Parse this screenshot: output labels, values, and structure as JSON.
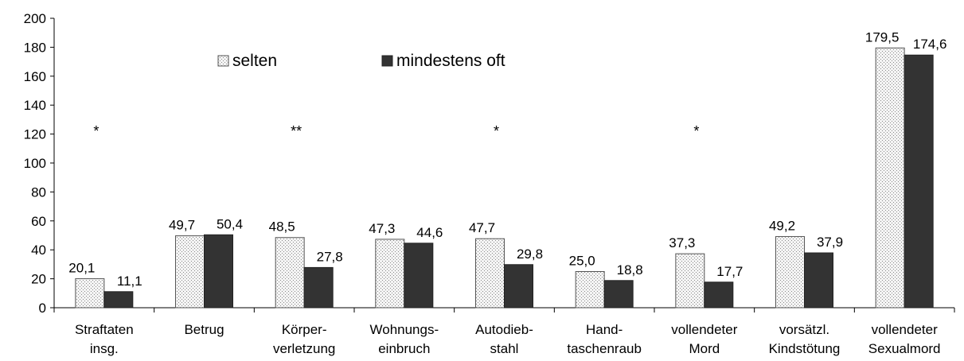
{
  "chart_data": {
    "type": "bar",
    "categories": [
      [
        "Straftaten",
        "insg."
      ],
      [
        "Betrug"
      ],
      [
        "Körper-",
        "verletzung"
      ],
      [
        "Wohnungs-",
        "einbruch"
      ],
      [
        "Autodieb-",
        "stahl"
      ],
      [
        "Hand-",
        "taschenraub"
      ],
      [
        "vollendeter",
        "Mord"
      ],
      [
        "vorsätzl.",
        "Kindstötung"
      ],
      [
        "vollendeter",
        "Sexualmord"
      ]
    ],
    "series": [
      {
        "name": "selten",
        "values": [
          20.1,
          49.7,
          48.5,
          47.3,
          47.7,
          25.0,
          37.3,
          49.2,
          179.5
        ],
        "labels": [
          "20,1",
          "49,7",
          "48,5",
          "47,3",
          "47,7",
          "25,0",
          "37,3",
          "49,2",
          "179,5"
        ],
        "color": "#e8e8e8",
        "pattern": "dotted"
      },
      {
        "name": "mindestens oft",
        "values": [
          11.1,
          50.4,
          27.8,
          44.6,
          29.8,
          18.8,
          17.7,
          37.9,
          174.6
        ],
        "labels": [
          "11,1",
          "50,4",
          "27,8",
          "44,6",
          "29,8",
          "18,8",
          "17,7",
          "37,9",
          "174,6"
        ],
        "color": "#333333"
      }
    ],
    "significance": [
      "*",
      "",
      "**",
      "",
      "*",
      "",
      "*",
      "",
      ""
    ],
    "ylim": [
      0,
      200
    ],
    "yticks": [
      0,
      20,
      40,
      60,
      80,
      100,
      120,
      140,
      160,
      180,
      200
    ],
    "legend": "top-left",
    "grid": false,
    "title": "",
    "xlabel": "",
    "ylabel": ""
  }
}
